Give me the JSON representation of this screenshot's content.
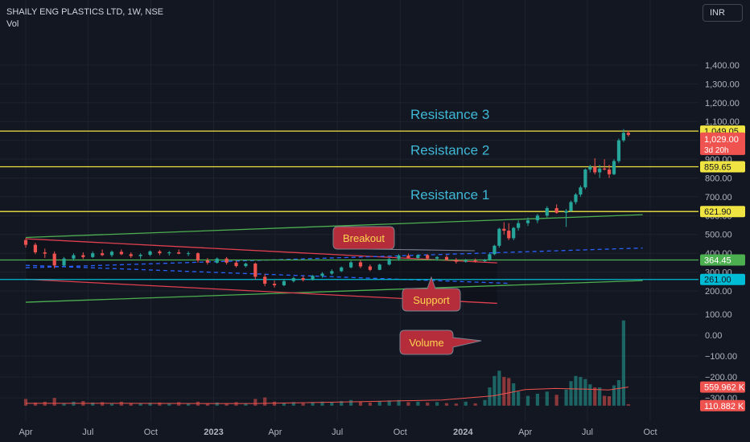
{
  "header": {
    "title": "SHAILY ENG PLASTICS LTD, 1W, NSE",
    "vol_label": "Vol"
  },
  "currency_button": "INR",
  "colors": {
    "background": "#131722",
    "up": "#26a69a",
    "down": "#ef5350",
    "grid": "#1e222d",
    "resistance": "#f0e442",
    "support": "#00bcd4",
    "level": "#4caf50",
    "trend_green": "#4caf50",
    "trend_red": "#e04050",
    "callout_fill": "#b52d3a",
    "resistance_text": "#3fb8d6"
  },
  "chart_data": {
    "type": "candlestick",
    "price_axis": {
      "ticks": [
        200,
        300,
        400,
        500,
        600,
        700,
        800,
        900,
        1000,
        1100,
        1200,
        1300,
        1400
      ],
      "tick_labels": [
        "200.00",
        "300.00",
        "400.00",
        "500.00",
        "600.00",
        "700.00",
        "800.00",
        "900.00",
        "1,000.00",
        "1,100.00",
        "1,200.00",
        "1,300.00",
        "1,400.00"
      ]
    },
    "volume_axis": {
      "ticks": [
        100,
        0,
        -100,
        -200,
        -300
      ],
      "tick_labels": [
        "100.00",
        "0.00",
        "−100.00",
        "−200.00",
        "−300.00"
      ]
    },
    "time_axis": {
      "labels": [
        "Apr",
        "Jul",
        "Oct",
        "2023",
        "Apr",
        "Jul",
        "Oct",
        "2024",
        "Apr",
        "Jul",
        "Oct"
      ],
      "label_dates": [
        "2022-04",
        "2022-07",
        "2022-10",
        "2023-01",
        "2023-04",
        "2023-07",
        "2023-10",
        "2024-01",
        "2024-04",
        "2024-07",
        "2024-10"
      ]
    },
    "levels": [
      {
        "name": "Resistance 3",
        "price": 1049.05,
        "label": "1,049.05",
        "kind": "resistance"
      },
      {
        "name": "Resistance 2",
        "price": 859.65,
        "label": "859.65",
        "kind": "resistance"
      },
      {
        "name": "Resistance 1",
        "price": 621.9,
        "label": "621.90",
        "kind": "resistance"
      },
      {
        "name": "",
        "price": 364.45,
        "label": "364.45",
        "kind": "level"
      },
      {
        "name": "",
        "price": 261.0,
        "label": "261.00",
        "kind": "support"
      }
    ],
    "last_price": {
      "value": 1029.0,
      "label": "1,029.00",
      "countdown": "3d 20h"
    },
    "volume_labels": [
      {
        "value": "559.962 K",
        "vol": -248
      },
      {
        "value": "110.882 K",
        "vol": -337
      }
    ],
    "annotations": [
      {
        "text": "Breakout",
        "kind": "callout"
      },
      {
        "text": "Support",
        "kind": "callout"
      },
      {
        "text": "Volume",
        "kind": "callout"
      }
    ],
    "trendlines": [
      {
        "kind": "green",
        "from": [
          "2022-04-01",
          484
        ],
        "to": [
          "2024-09-20",
          605
        ]
      },
      {
        "kind": "green",
        "from": [
          "2022-04-01",
          140
        ],
        "to": [
          "2024-09-20",
          255
        ]
      },
      {
        "kind": "red",
        "from": [
          "2022-04-01",
          477
        ],
        "to": [
          "2024-02-20",
          349
        ]
      },
      {
        "kind": "red",
        "from": [
          "2022-04-01",
          262
        ],
        "to": [
          "2024-02-20",
          134
        ]
      },
      {
        "kind": "blue_dashed",
        "from": [
          "2022-04-01",
          323
        ],
        "to": [
          "2024-09-20",
          428
        ]
      },
      {
        "kind": "blue_dashed",
        "from": [
          "2022-04-01",
          336
        ],
        "to": [
          "2024-03-10",
          240
        ]
      }
    ],
    "candles": {
      "columns": [
        "date",
        "open",
        "high",
        "low",
        "close",
        "volume"
      ],
      "rows": [
        [
          "2022-04-01",
          470,
          480,
          430,
          445,
          -305
        ],
        [
          "2022-04-15",
          445,
          455,
          395,
          405,
          -322
        ],
        [
          "2022-04-29",
          405,
          425,
          375,
          398,
          -318
        ],
        [
          "2022-05-13",
          398,
          410,
          320,
          335,
          -300
        ],
        [
          "2022-05-27",
          335,
          380,
          330,
          372,
          -325
        ],
        [
          "2022-06-10",
          372,
          400,
          360,
          390,
          -318
        ],
        [
          "2022-06-24",
          390,
          405,
          370,
          380,
          -315
        ],
        [
          "2022-07-08",
          380,
          410,
          375,
          400,
          -322
        ],
        [
          "2022-07-22",
          400,
          420,
          385,
          390,
          -320
        ],
        [
          "2022-08-05",
          390,
          415,
          380,
          408,
          -328
        ],
        [
          "2022-08-19",
          408,
          420,
          390,
          395,
          -318
        ],
        [
          "2022-09-02",
          395,
          405,
          375,
          385,
          -324
        ],
        [
          "2022-09-16",
          385,
          400,
          370,
          392,
          -326
        ],
        [
          "2022-09-30",
          392,
          415,
          385,
          410,
          -323
        ],
        [
          "2022-10-14",
          410,
          418,
          390,
          400,
          -322
        ],
        [
          "2022-10-28",
          400,
          412,
          388,
          405,
          -325
        ],
        [
          "2022-11-11",
          405,
          420,
          395,
          398,
          -320
        ],
        [
          "2022-11-25",
          398,
          410,
          385,
          400,
          -327
        ],
        [
          "2022-12-09",
          400,
          405,
          350,
          362,
          -318
        ],
        [
          "2022-12-23",
          362,
          375,
          340,
          350,
          -326
        ],
        [
          "2023-01-06",
          350,
          378,
          345,
          372,
          -322
        ],
        [
          "2023-01-20",
          372,
          380,
          340,
          350,
          -328
        ],
        [
          "2023-02-03",
          350,
          360,
          325,
          332,
          -320
        ],
        [
          "2023-02-17",
          332,
          350,
          325,
          345,
          -328
        ],
        [
          "2023-03-03",
          345,
          350,
          260,
          275,
          -305
        ],
        [
          "2023-03-17",
          275,
          290,
          225,
          238,
          -298
        ],
        [
          "2023-03-31",
          238,
          255,
          218,
          230,
          -318
        ],
        [
          "2023-04-14",
          230,
          260,
          225,
          252,
          -326
        ],
        [
          "2023-04-28",
          252,
          275,
          245,
          268,
          -320
        ],
        [
          "2023-05-12",
          268,
          280,
          250,
          258,
          -325
        ],
        [
          "2023-05-26",
          258,
          285,
          255,
          280,
          -320
        ],
        [
          "2023-06-09",
          280,
          300,
          270,
          292,
          -318
        ],
        [
          "2023-06-23",
          292,
          315,
          285,
          305,
          -322
        ],
        [
          "2023-07-07",
          305,
          330,
          300,
          325,
          -315
        ],
        [
          "2023-07-21",
          325,
          360,
          320,
          352,
          -310
        ],
        [
          "2023-08-04",
          352,
          365,
          320,
          330,
          -318
        ],
        [
          "2023-08-18",
          330,
          340,
          305,
          312,
          -322
        ],
        [
          "2023-09-01",
          312,
          345,
          310,
          340,
          -316
        ],
        [
          "2023-09-15",
          340,
          375,
          335,
          370,
          -312
        ],
        [
          "2023-09-29",
          370,
          395,
          360,
          388,
          -310
        ],
        [
          "2023-10-13",
          388,
          398,
          370,
          375,
          -320
        ],
        [
          "2023-10-27",
          375,
          395,
          370,
          390,
          -318
        ],
        [
          "2023-11-10",
          390,
          395,
          365,
          372,
          -322
        ],
        [
          "2023-11-24",
          372,
          385,
          360,
          380,
          -320
        ],
        [
          "2023-12-08",
          380,
          390,
          360,
          365,
          -325
        ],
        [
          "2023-12-22",
          365,
          375,
          345,
          355,
          -327
        ],
        [
          "2024-01-05",
          355,
          370,
          350,
          362,
          -318
        ],
        [
          "2024-01-19",
          362,
          372,
          350,
          358,
          -326
        ],
        [
          "2024-02-02",
          358,
          370,
          355,
          365,
          -310
        ],
        [
          "2024-02-09",
          365,
          400,
          360,
          395,
          -250
        ],
        [
          "2024-02-16",
          395,
          445,
          390,
          440,
          -195
        ],
        [
          "2024-02-23",
          440,
          535,
          430,
          530,
          -170
        ],
        [
          "2024-03-01",
          530,
          565,
          500,
          520,
          -200
        ],
        [
          "2024-03-08",
          520,
          560,
          470,
          480,
          -205
        ],
        [
          "2024-03-15",
          480,
          540,
          470,
          535,
          -230
        ],
        [
          "2024-03-22",
          535,
          575,
          520,
          560,
          -270
        ],
        [
          "2024-04-05",
          560,
          590,
          545,
          575,
          -290
        ],
        [
          "2024-04-19",
          575,
          610,
          560,
          600,
          -280
        ],
        [
          "2024-05-03",
          600,
          650,
          590,
          640,
          -270
        ],
        [
          "2024-05-17",
          640,
          660,
          610,
          615,
          -285
        ],
        [
          "2024-05-31",
          615,
          635,
          540,
          625,
          -260
        ],
        [
          "2024-06-07",
          625,
          680,
          620,
          672,
          -220
        ],
        [
          "2024-06-14",
          672,
          720,
          660,
          712,
          -195
        ],
        [
          "2024-06-21",
          712,
          760,
          700,
          750,
          -200
        ],
        [
          "2024-06-28",
          750,
          850,
          740,
          845,
          -210
        ],
        [
          "2024-07-05",
          845,
          870,
          830,
          860,
          -235
        ],
        [
          "2024-07-12",
          860,
          905,
          820,
          830,
          -250
        ],
        [
          "2024-07-19",
          830,
          870,
          800,
          850,
          -250
        ],
        [
          "2024-07-26",
          850,
          900,
          840,
          845,
          -290
        ],
        [
          "2024-08-02",
          845,
          870,
          800,
          820,
          -292
        ],
        [
          "2024-08-09",
          820,
          900,
          815,
          890,
          -240
        ],
        [
          "2024-08-16",
          890,
          1010,
          880,
          1000,
          -215
        ],
        [
          "2024-08-23",
          1000,
          1060,
          990,
          1040,
          70
        ],
        [
          "2024-08-30",
          1040,
          1050,
          1020,
          1029,
          -330
        ]
      ]
    },
    "volume_ma": {
      "dates": [
        "2022-04-01",
        "2022-09-01",
        "2023-03-01",
        "2023-08-01",
        "2023-12-01",
        "2024-02-15",
        "2024-04-01",
        "2024-05-15",
        "2024-07-01",
        "2024-08-01",
        "2024-08-30"
      ],
      "values": [
        -326,
        -326,
        -327,
        -318,
        -310,
        -290,
        -260,
        -255,
        -258,
        -262,
        -248
      ]
    }
  }
}
